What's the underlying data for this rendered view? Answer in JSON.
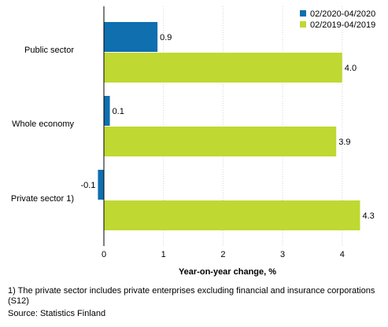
{
  "chart_data": {
    "type": "bar",
    "orientation": "horizontal",
    "categories": [
      "Public sector",
      "Whole economy",
      "Private sector 1)"
    ],
    "series": [
      {
        "name": "02/2020-04/2020",
        "values": [
          0.9,
          0.1,
          -0.1
        ],
        "labels": [
          "0.9",
          "0.1",
          "-0.1"
        ],
        "color": "#0f6faf"
      },
      {
        "name": "02/2019-04/2019",
        "values": [
          4.0,
          3.9,
          4.3
        ],
        "labels": [
          "4.0",
          "3.9",
          "4.3"
        ],
        "color": "#c0d832"
      }
    ],
    "xlabel": "Year-on-year change, %",
    "xticks": [
      "0",
      "1",
      "2",
      "3",
      "4"
    ],
    "xlim": [
      -0.45,
      4.85
    ],
    "grid": true,
    "legend_position": "top-right"
  },
  "footnote": "1) The private sector includes private enterprises excluding financial and insurance corporations (S12)",
  "source": "Source: Statistics Finland"
}
